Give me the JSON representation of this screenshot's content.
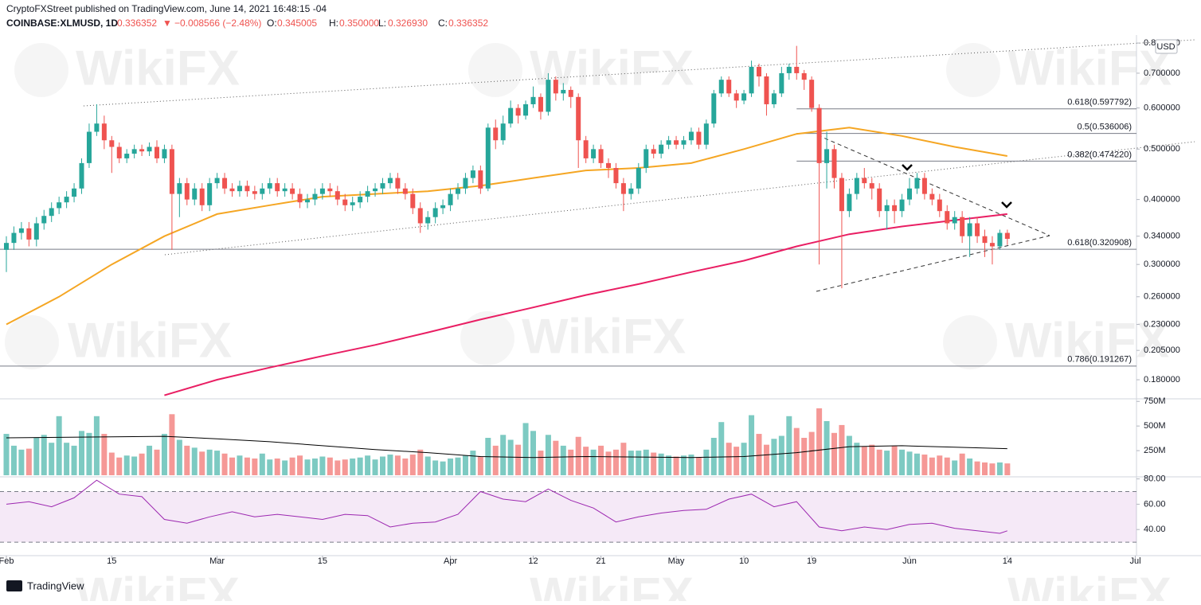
{
  "header": {
    "publisher": "CryptoFXStreet published on TradingView.com, June 14, 2021 16:48:15 -04",
    "symbol": "COINBASE:XLMUSD, 1D",
    "price": "0.336352",
    "arrow": "▼",
    "change": "−0.008566 (−2.48%)",
    "ohlc": [
      {
        "label": "O:",
        "value": "0.345005"
      },
      {
        "label": "H:",
        "value": "0.350000"
      },
      {
        "label": "L:",
        "value": "0.326930"
      },
      {
        "label": "C:",
        "value": "0.336352"
      }
    ]
  },
  "currency": "USD",
  "watermark": "WikiFX",
  "footer": "TradingView",
  "chart_data": {
    "type": "candlestick",
    "x": [
      "02-01",
      "02-02",
      "02-03",
      "02-04",
      "02-05",
      "02-06",
      "02-07",
      "02-08",
      "02-09",
      "02-10",
      "02-11",
      "02-12",
      "02-13",
      "02-14",
      "02-15",
      "02-16",
      "02-17",
      "02-18",
      "02-19",
      "02-20",
      "02-21",
      "02-22",
      "02-23",
      "02-24",
      "02-25",
      "02-26",
      "02-27",
      "02-28",
      "03-01",
      "03-02",
      "03-03",
      "03-04",
      "03-05",
      "03-06",
      "03-07",
      "03-08",
      "03-09",
      "03-10",
      "03-11",
      "03-12",
      "03-13",
      "03-14",
      "03-15",
      "03-16",
      "03-17",
      "03-18",
      "03-19",
      "03-20",
      "03-21",
      "03-22",
      "03-23",
      "03-24",
      "03-25",
      "03-26",
      "03-27",
      "03-28",
      "03-29",
      "03-30",
      "03-31",
      "04-01",
      "04-02",
      "04-03",
      "04-04",
      "04-05",
      "04-06",
      "04-07",
      "04-08",
      "04-09",
      "04-10",
      "04-11",
      "04-12",
      "04-13",
      "04-14",
      "04-15",
      "04-16",
      "04-17",
      "04-18",
      "04-19",
      "04-20",
      "04-21",
      "04-22",
      "04-23",
      "04-24",
      "04-25",
      "04-26",
      "04-27",
      "04-28",
      "04-29",
      "04-30",
      "05-01",
      "05-02",
      "05-03",
      "05-04",
      "05-05",
      "05-06",
      "05-07",
      "05-08",
      "05-09",
      "05-10",
      "05-11",
      "05-12",
      "05-13",
      "05-14",
      "05-15",
      "05-16",
      "05-17",
      "05-18",
      "05-19",
      "05-20",
      "05-21",
      "05-22",
      "05-23",
      "05-24",
      "05-25",
      "05-26",
      "05-27",
      "05-28",
      "05-29",
      "05-30",
      "05-31",
      "06-01",
      "06-02",
      "06-03",
      "06-04",
      "06-05",
      "06-06",
      "06-07",
      "06-08",
      "06-09",
      "06-10",
      "06-11",
      "06-12",
      "06-13",
      "06-14"
    ],
    "open": [
      0.32,
      0.33,
      0.345,
      0.352,
      0.335,
      0.36,
      0.372,
      0.385,
      0.395,
      0.405,
      0.42,
      0.47,
      0.54,
      0.56,
      0.52,
      0.505,
      0.48,
      0.49,
      0.5,
      0.495,
      0.505,
      0.48,
      0.5,
      0.41,
      0.43,
      0.4,
      0.42,
      0.39,
      0.43,
      0.44,
      0.42,
      0.415,
      0.425,
      0.415,
      0.41,
      0.42,
      0.43,
      0.415,
      0.42,
      0.41,
      0.395,
      0.4,
      0.41,
      0.42,
      0.415,
      0.4,
      0.39,
      0.395,
      0.405,
      0.415,
      0.42,
      0.43,
      0.44,
      0.42,
      0.41,
      0.385,
      0.36,
      0.37,
      0.385,
      0.39,
      0.41,
      0.42,
      0.44,
      0.455,
      0.42,
      0.55,
      0.52,
      0.56,
      0.6,
      0.58,
      0.61,
      0.63,
      0.59,
      0.68,
      0.64,
      0.65,
      0.63,
      0.52,
      0.48,
      0.5,
      0.47,
      0.46,
      0.43,
      0.41,
      0.42,
      0.46,
      0.5,
      0.49,
      0.51,
      0.52,
      0.51,
      0.52,
      0.54,
      0.51,
      0.56,
      0.64,
      0.68,
      0.64,
      0.62,
      0.64,
      0.72,
      0.69,
      0.61,
      0.64,
      0.7,
      0.72,
      0.7,
      0.68,
      0.6,
      0.47,
      0.5,
      0.44,
      0.38,
      0.41,
      0.44,
      0.43,
      0.42,
      0.38,
      0.39,
      0.38,
      0.4,
      0.42,
      0.44,
      0.41,
      0.4,
      0.38,
      0.36,
      0.37,
      0.34,
      0.36,
      0.34,
      0.33,
      0.325,
      0.345
    ],
    "high": [
      0.34,
      0.355,
      0.362,
      0.362,
      0.37,
      0.382,
      0.395,
      0.405,
      0.415,
      0.43,
      0.48,
      0.56,
      0.61,
      0.58,
      0.53,
      0.515,
      0.5,
      0.51,
      0.51,
      0.515,
      0.52,
      0.51,
      0.51,
      0.44,
      0.44,
      0.43,
      0.43,
      0.44,
      0.45,
      0.45,
      0.43,
      0.435,
      0.435,
      0.425,
      0.43,
      0.44,
      0.44,
      0.43,
      0.43,
      0.42,
      0.41,
      0.42,
      0.43,
      0.43,
      0.425,
      0.41,
      0.405,
      0.415,
      0.425,
      0.43,
      0.44,
      0.45,
      0.45,
      0.43,
      0.42,
      0.395,
      0.38,
      0.395,
      0.4,
      0.42,
      0.43,
      0.45,
      0.465,
      0.465,
      0.56,
      0.57,
      0.58,
      0.62,
      0.61,
      0.62,
      0.66,
      0.64,
      0.7,
      0.69,
      0.67,
      0.66,
      0.64,
      0.53,
      0.51,
      0.51,
      0.48,
      0.47,
      0.44,
      0.43,
      0.47,
      0.51,
      0.51,
      0.52,
      0.53,
      0.53,
      0.53,
      0.55,
      0.55,
      0.57,
      0.65,
      0.69,
      0.69,
      0.65,
      0.65,
      0.74,
      0.73,
      0.7,
      0.65,
      0.72,
      0.73,
      0.79,
      0.71,
      0.69,
      0.61,
      0.54,
      0.51,
      0.45,
      0.42,
      0.45,
      0.46,
      0.44,
      0.43,
      0.4,
      0.4,
      0.41,
      0.44,
      0.45,
      0.45,
      0.42,
      0.41,
      0.39,
      0.38,
      0.38,
      0.37,
      0.37,
      0.35,
      0.34,
      0.35,
      0.35
    ],
    "low": [
      0.29,
      0.32,
      0.335,
      0.325,
      0.325,
      0.35,
      0.362,
      0.375,
      0.385,
      0.395,
      0.41,
      0.46,
      0.53,
      0.5,
      0.45,
      0.47,
      0.47,
      0.48,
      0.485,
      0.485,
      0.47,
      0.47,
      0.32,
      0.37,
      0.39,
      0.39,
      0.38,
      0.38,
      0.42,
      0.41,
      0.405,
      0.405,
      0.405,
      0.4,
      0.4,
      0.41,
      0.405,
      0.405,
      0.4,
      0.385,
      0.385,
      0.39,
      0.4,
      0.405,
      0.39,
      0.38,
      0.38,
      0.385,
      0.395,
      0.405,
      0.41,
      0.42,
      0.41,
      0.4,
      0.375,
      0.345,
      0.35,
      0.36,
      0.375,
      0.38,
      0.4,
      0.41,
      0.43,
      0.41,
      0.415,
      0.5,
      0.51,
      0.55,
      0.56,
      0.57,
      0.6,
      0.57,
      0.58,
      0.62,
      0.62,
      0.6,
      0.46,
      0.47,
      0.47,
      0.46,
      0.44,
      0.42,
      0.38,
      0.4,
      0.41,
      0.45,
      0.48,
      0.48,
      0.5,
      0.5,
      0.5,
      0.51,
      0.5,
      0.5,
      0.55,
      0.63,
      0.63,
      0.6,
      0.61,
      0.63,
      0.66,
      0.58,
      0.6,
      0.63,
      0.68,
      0.68,
      0.65,
      0.59,
      0.3,
      0.42,
      0.42,
      0.27,
      0.37,
      0.4,
      0.42,
      0.4,
      0.37,
      0.35,
      0.36,
      0.37,
      0.39,
      0.41,
      0.4,
      0.39,
      0.37,
      0.35,
      0.35,
      0.33,
      0.31,
      0.33,
      0.31,
      0.3,
      0.32,
      0.327
    ],
    "close": [
      0.33,
      0.345,
      0.352,
      0.335,
      0.36,
      0.372,
      0.385,
      0.395,
      0.405,
      0.42,
      0.47,
      0.54,
      0.56,
      0.52,
      0.505,
      0.48,
      0.49,
      0.5,
      0.495,
      0.505,
      0.48,
      0.5,
      0.41,
      0.43,
      0.4,
      0.42,
      0.39,
      0.43,
      0.44,
      0.42,
      0.415,
      0.425,
      0.415,
      0.41,
      0.42,
      0.43,
      0.415,
      0.42,
      0.41,
      0.395,
      0.4,
      0.41,
      0.42,
      0.415,
      0.4,
      0.39,
      0.395,
      0.405,
      0.415,
      0.42,
      0.43,
      0.44,
      0.42,
      0.41,
      0.385,
      0.36,
      0.37,
      0.385,
      0.39,
      0.41,
      0.42,
      0.44,
      0.455,
      0.42,
      0.55,
      0.52,
      0.56,
      0.6,
      0.58,
      0.61,
      0.63,
      0.59,
      0.68,
      0.64,
      0.65,
      0.63,
      0.52,
      0.48,
      0.5,
      0.47,
      0.46,
      0.43,
      0.41,
      0.42,
      0.46,
      0.5,
      0.49,
      0.51,
      0.52,
      0.51,
      0.52,
      0.54,
      0.51,
      0.56,
      0.64,
      0.68,
      0.64,
      0.62,
      0.64,
      0.72,
      0.69,
      0.61,
      0.64,
      0.7,
      0.72,
      0.7,
      0.68,
      0.6,
      0.47,
      0.5,
      0.44,
      0.38,
      0.41,
      0.44,
      0.43,
      0.42,
      0.38,
      0.39,
      0.38,
      0.4,
      0.42,
      0.44,
      0.41,
      0.4,
      0.38,
      0.36,
      0.37,
      0.34,
      0.36,
      0.34,
      0.33,
      0.325,
      0.345,
      0.336
    ],
    "colors": {
      "up": "#26a69a",
      "down": "#ef5350"
    },
    "log_scale": true,
    "ylim": [
      0.166,
      0.826
    ],
    "yticks": [
      {
        "value": 0.8,
        "label": "0.800000"
      },
      {
        "value": 0.7,
        "label": "0.700000"
      },
      {
        "value": 0.6,
        "label": "0.600000"
      },
      {
        "value": 0.5,
        "label": "0.500000"
      },
      {
        "value": 0.4,
        "label": "0.400000"
      },
      {
        "value": 0.34,
        "label": "0.340000"
      },
      {
        "value": 0.3,
        "label": "0.300000"
      },
      {
        "value": 0.26,
        "label": "0.260000"
      },
      {
        "value": 0.23,
        "label": "0.230000"
      },
      {
        "value": 0.205,
        "label": "0.205000"
      },
      {
        "value": 0.18,
        "label": "0.180000"
      }
    ],
    "xticks": [
      {
        "value": "02-01",
        "label": "Feb"
      },
      {
        "value": "02-15",
        "label": "15"
      },
      {
        "value": "03-01",
        "label": "Mar"
      },
      {
        "value": "03-15",
        "label": "15"
      },
      {
        "value": "04-01",
        "label": "Apr"
      },
      {
        "value": "04-12",
        "label": "12"
      },
      {
        "value": "04-21",
        "label": "21"
      },
      {
        "value": "05-01",
        "label": "May"
      },
      {
        "value": "05-10",
        "label": "10"
      },
      {
        "value": "05-19",
        "label": "19"
      },
      {
        "value": "06-01",
        "label": "Jun"
      },
      {
        "value": "06-14",
        "label": "14"
      },
      {
        "value": "07-01",
        "label": "Jul"
      }
    ],
    "moving_averages": [
      {
        "color": "#f5a623",
        "x": [
          "02-01",
          "02-08",
          "02-15",
          "02-22",
          "03-01",
          "03-08",
          "03-15",
          "03-22",
          "03-29",
          "04-05",
          "04-12",
          "04-19",
          "04-26",
          "05-03",
          "05-10",
          "05-17",
          "05-24",
          "05-31",
          "06-07",
          "06-14"
        ],
        "values": [
          0.23,
          0.26,
          0.3,
          0.34,
          0.375,
          0.39,
          0.405,
          0.41,
          0.415,
          0.425,
          0.44,
          0.455,
          0.46,
          0.47,
          0.5,
          0.535,
          0.55,
          0.53,
          0.505,
          0.485
        ]
      },
      {
        "color": "#e91e63",
        "x": [
          "02-22",
          "03-01",
          "03-08",
          "03-15",
          "03-22",
          "03-29",
          "04-05",
          "04-12",
          "04-19",
          "04-26",
          "05-03",
          "05-10",
          "05-17",
          "05-24",
          "05-31",
          "06-07",
          "06-14"
        ],
        "values": [
          0.168,
          0.18,
          0.19,
          0.2,
          0.21,
          0.222,
          0.235,
          0.248,
          0.262,
          0.275,
          0.29,
          0.305,
          0.325,
          0.343,
          0.355,
          0.365,
          0.375
        ]
      }
    ],
    "fib_levels": [
      {
        "label": "0.618(0.597792)",
        "value": 0.597792,
        "from": "05-17"
      },
      {
        "label": "0.5(0.536006)",
        "value": 0.536006,
        "from": "05-17"
      },
      {
        "label": "0.382(0.474220)",
        "value": 0.47422,
        "from": "05-17"
      },
      {
        "label": "0.618(0.320908)",
        "value": 0.320908
      },
      {
        "label": "0.786(0.191267)",
        "value": 0.191267
      }
    ],
    "volume": {
      "values": [
        420,
        300,
        260,
        270,
        380,
        410,
        330,
        600,
        330,
        300,
        450,
        430,
        600,
        420,
        230,
        180,
        200,
        190,
        220,
        300,
        260,
        420,
        620,
        360,
        300,
        280,
        240,
        260,
        250,
        220,
        180,
        200,
        180,
        170,
        220,
        160,
        170,
        150,
        180,
        200,
        160,
        170,
        190,
        180,
        150,
        160,
        170,
        180,
        200,
        160,
        190,
        210,
        200,
        170,
        210,
        260,
        190,
        150,
        140,
        170,
        180,
        200,
        250,
        190,
        380,
        300,
        410,
        360,
        310,
        530,
        450,
        250,
        410,
        350,
        300,
        260,
        390,
        290,
        260,
        300,
        240,
        260,
        330,
        250,
        250,
        260,
        230,
        220,
        200,
        190,
        200,
        210,
        180,
        260,
        380,
        540,
        330,
        290,
        330,
        610,
        420,
        310,
        370,
        400,
        600,
        480,
        380,
        440,
        680,
        550,
        430,
        510,
        400,
        330,
        290,
        310,
        260,
        250,
        300,
        260,
        240,
        220,
        210,
        180,
        200,
        180,
        150,
        220,
        170,
        140,
        130,
        120,
        130,
        120
      ],
      "ylim": [
        0,
        760
      ],
      "yticks": [
        {
          "value": 250,
          "label": "250M"
        },
        {
          "value": 500,
          "label": "500M"
        },
        {
          "value": 750,
          "label": "750M"
        }
      ],
      "ma": {
        "color": "#000000",
        "x": [
          "02-01",
          "02-08",
          "02-15",
          "02-22",
          "03-01",
          "03-08",
          "03-15",
          "03-22",
          "03-29",
          "04-05",
          "04-12",
          "04-19",
          "04-26",
          "05-03",
          "05-10",
          "05-17",
          "05-24",
          "05-31",
          "06-07",
          "06-14"
        ],
        "values": [
          380,
          385,
          390,
          395,
          370,
          340,
          300,
          260,
          230,
          190,
          180,
          190,
          185,
          180,
          190,
          230,
          290,
          300,
          285,
          270
        ]
      }
    },
    "rsi": {
      "color": "#9c27b0",
      "x": [
        "02-01",
        "02-04",
        "02-07",
        "02-10",
        "02-13",
        "02-16",
        "02-19",
        "02-22",
        "02-25",
        "02-28",
        "03-03",
        "03-06",
        "03-09",
        "03-12",
        "03-15",
        "03-18",
        "03-21",
        "03-24",
        "03-27",
        "03-30",
        "04-02",
        "04-05",
        "04-08",
        "04-11",
        "04-14",
        "04-17",
        "04-20",
        "04-23",
        "04-26",
        "04-29",
        "05-02",
        "05-05",
        "05-08",
        "05-11",
        "05-14",
        "05-17",
        "05-20",
        "05-23",
        "05-26",
        "05-29",
        "06-01",
        "06-04",
        "06-07",
        "06-10",
        "06-13",
        "06-14"
      ],
      "values": [
        60,
        62,
        58,
        65,
        79,
        68,
        66,
        48,
        45,
        50,
        54,
        50,
        52,
        50,
        48,
        52,
        51,
        42,
        45,
        46,
        52,
        70,
        64,
        62,
        72,
        63,
        57,
        46,
        50,
        53,
        55,
        56,
        64,
        68,
        58,
        62,
        42,
        39,
        42,
        40,
        44,
        45,
        41,
        39,
        37,
        39
      ],
      "ylim": [
        20,
        81
      ],
      "yticks": [
        {
          "value": 80,
          "label": "80.00"
        },
        {
          "value": 60,
          "label": "60.00"
        },
        {
          "value": 40,
          "label": "40.00"
        }
      ],
      "band": [
        30,
        70
      ]
    }
  }
}
